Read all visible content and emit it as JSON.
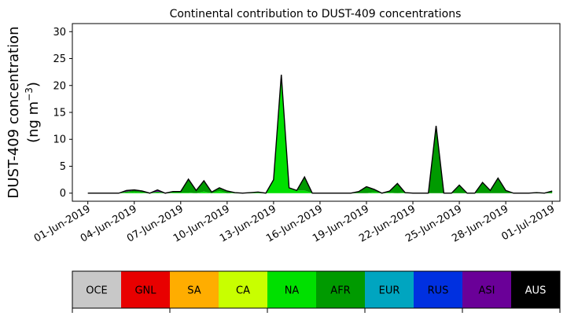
{
  "chart_data": {
    "type": "area",
    "stacked": true,
    "title": "Continental contribution to DUST-409 concentrations",
    "ylabel_line1": "DUST-409 concentration",
    "ylabel_line2_prefix": "(ng m",
    "ylabel_line2_sup": "−3",
    "ylabel_line2_suffix": ")",
    "ylim": [
      -1.5,
      31.5
    ],
    "yticks": [
      0,
      5,
      10,
      15,
      20,
      25,
      30
    ],
    "xlim": [
      -1,
      30.5
    ],
    "xtick_positions": [
      0,
      3,
      6,
      9,
      12,
      15,
      18,
      21,
      24,
      27,
      30
    ],
    "xtick_labels": [
      "01-Jun-2019",
      "04-Jun-2019",
      "07-Jun-2019",
      "10-Jun-2019",
      "13-Jun-2019",
      "16-Jun-2019",
      "19-Jun-2019",
      "22-Jun-2019",
      "25-Jun-2019",
      "28-Jun-2019",
      "01-Jul-2019"
    ],
    "x_dates": [
      "01-Jun",
      "02-Jun",
      "03-Jun",
      "04-Jun",
      "05-Jun",
      "06-Jun",
      "07-Jun",
      "08-Jun",
      "09-Jun",
      "10-Jun",
      "11-Jun",
      "12-Jun",
      "13-Jun",
      "14-Jun",
      "15-Jun",
      "16-Jun",
      "17-Jun",
      "18-Jun",
      "19-Jun",
      "20-Jun",
      "21-Jun",
      "22-Jun",
      "23-Jun",
      "24-Jun",
      "25-Jun",
      "26-Jun",
      "27-Jun",
      "28-Jun",
      "29-Jun",
      "30-Jun",
      "01-Jul"
    ],
    "x": [
      0,
      1,
      2,
      2.5,
      3,
      3.5,
      4,
      4.5,
      5,
      5.5,
      6,
      6.5,
      7,
      7.5,
      8,
      8.5,
      9,
      9.5,
      10,
      10.5,
      11,
      11.5,
      12,
      12.5,
      13,
      13.5,
      14,
      14.5,
      15,
      15.5,
      16,
      16.5,
      17,
      17.5,
      18,
      18.5,
      19,
      19.5,
      20,
      20.5,
      21,
      21.5,
      22,
      22.5,
      23,
      23.5,
      24,
      24.5,
      25,
      25.5,
      26,
      26.5,
      27,
      27.5,
      28,
      28.5,
      29,
      29.5,
      30
    ],
    "series": [
      {
        "name": "GNL",
        "color": "#e80000",
        "values": [
          0,
          0,
          0,
          0,
          0,
          0,
          0,
          0,
          0,
          0,
          0,
          0,
          0,
          0,
          0,
          0,
          0,
          0,
          0,
          0,
          0,
          0,
          0,
          0,
          0,
          0,
          0,
          0,
          0,
          0,
          0,
          0,
          0,
          0,
          0,
          0,
          0,
          0,
          0,
          0,
          0,
          0,
          0,
          0,
          0,
          0,
          0,
          0,
          0,
          0,
          0,
          0,
          0,
          0,
          0,
          0,
          0,
          0,
          0
        ]
      },
      {
        "name": "CA",
        "color": "#c8ff00",
        "values": [
          0,
          0,
          0,
          0,
          0,
          0,
          0,
          0,
          0,
          0,
          0,
          0,
          0,
          0,
          0,
          0,
          0,
          0,
          0,
          0,
          0,
          0,
          0,
          0,
          0,
          0,
          0,
          0,
          0,
          0,
          0,
          0,
          0,
          0,
          0,
          0,
          0,
          0,
          0,
          0,
          0,
          0,
          0,
          0,
          0,
          0,
          0,
          0,
          0,
          0,
          0,
          0,
          0,
          0,
          0,
          0,
          0,
          0,
          0
        ]
      },
      {
        "name": "NA",
        "color": "#00e000",
        "values": [
          0,
          0,
          0,
          0.1,
          0.2,
          0.1,
          0,
          0.1,
          0,
          0.1,
          0.1,
          0.1,
          0,
          0.3,
          0,
          0.4,
          0,
          0.1,
          0,
          0.1,
          0.2,
          0,
          2.5,
          22,
          1,
          0.5,
          0.5,
          0,
          0,
          0,
          0,
          0,
          0,
          0,
          0,
          0.2,
          0,
          0.1,
          0,
          0.1,
          0,
          0,
          0,
          0,
          0,
          0,
          0,
          0,
          0,
          0,
          0,
          0,
          0,
          0,
          0,
          0,
          0.1,
          0,
          0
        ]
      },
      {
        "name": "AFR",
        "color": "#009a00",
        "values": [
          0,
          0,
          0,
          0.2,
          0.3,
          0.2,
          0,
          0.2,
          0,
          0.2,
          0.2,
          2.5,
          0.5,
          2,
          0.2,
          0.6,
          0.4,
          0,
          0,
          0,
          0,
          0,
          0,
          0,
          0,
          0,
          2.5,
          0,
          0,
          0,
          0,
          0,
          0,
          0.3,
          1.2,
          0.5,
          0,
          0.3,
          1.8,
          0,
          0,
          0,
          0,
          12.5,
          0,
          0,
          1.5,
          0,
          0,
          2,
          0.5,
          2.8,
          0.5,
          0,
          0,
          0,
          0,
          0,
          0.4
        ]
      },
      {
        "name": "ASI",
        "color": "#6a0098",
        "values": [
          0,
          0,
          0,
          0.2,
          0.1,
          0.1,
          0,
          0.3,
          0,
          0,
          0,
          0,
          0,
          0,
          0,
          0,
          0,
          0,
          0,
          0,
          0,
          0,
          0,
          0,
          0,
          0,
          0,
          0,
          0,
          0,
          0,
          0,
          0,
          0,
          0,
          0,
          0,
          0,
          0,
          0,
          0,
          0,
          0,
          0,
          0,
          0,
          0,
          0,
          0,
          0,
          0,
          0,
          0,
          0,
          0,
          0,
          0,
          0,
          0
        ]
      }
    ],
    "overlay_series_note": "",
    "colorbar": {
      "labels": [
        "OCE",
        "GNL",
        "SA",
        "CA",
        "NA",
        "AFR",
        "EUR",
        "RUS",
        "ASI",
        "AUS"
      ],
      "colors": [
        "#c8c8c8",
        "#e80000",
        "#ffad00",
        "#c8ff00",
        "#00e000",
        "#009a00",
        "#00a5c0",
        "#0030e0",
        "#6a0098",
        "#000000"
      ],
      "label_colors": [
        "#000000",
        "#000000",
        "#000000",
        "#000000",
        "#000000",
        "#000000",
        "#000000",
        "#000000",
        "#000000",
        "#ffffff"
      ]
    }
  }
}
